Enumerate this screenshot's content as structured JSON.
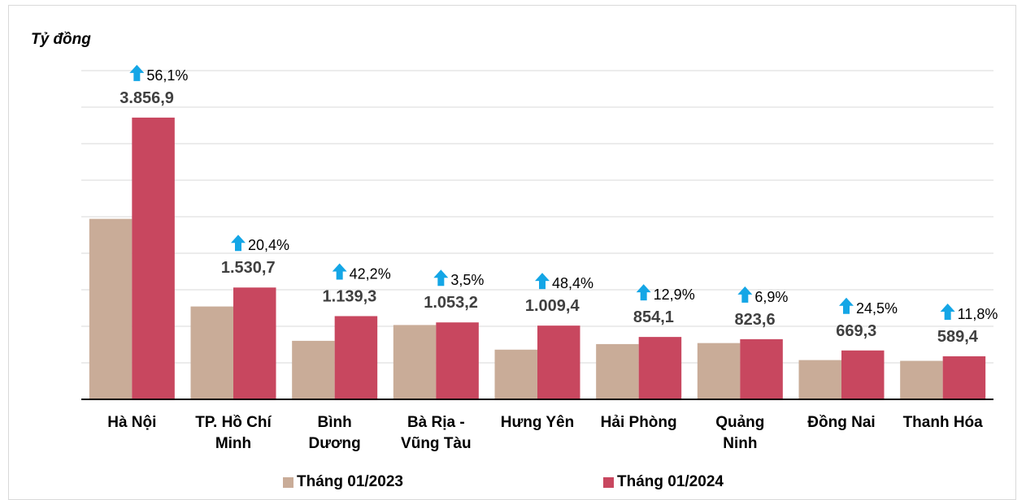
{
  "chart_data": {
    "type": "bar",
    "y_label": "Tỷ đồng",
    "categories": [
      "Hà Nội",
      "TP. Hồ Chí\nMinh",
      "Bình\nDương",
      "Bà Rịa -\nVũng Tàu",
      "Hưng Yên",
      "Hải Phòng",
      "Quảng\nNinh",
      "Đồng Nai",
      "Thanh Hóa"
    ],
    "series": [
      {
        "name": "Tháng 01/2023",
        "color": "#c9ac98",
        "values": [
          2470.8,
          1271.3,
          801.2,
          1017.6,
          680.2,
          756.5,
          770.4,
          537.6,
          527.2
        ]
      },
      {
        "name": "Tháng 01/2024",
        "color": "#c8475f",
        "values": [
          3856.9,
          1530.7,
          1139.3,
          1053.2,
          1009.4,
          854.1,
          823.6,
          669.3,
          589.4
        ],
        "value_labels": [
          "3.856,9",
          "1.530,7",
          "1.139,3",
          "1.053,2",
          "1.009,4",
          "854,1",
          "823,6",
          "669,3",
          "589,4"
        ]
      }
    ],
    "growth": {
      "values": [
        56.1,
        20.4,
        42.2,
        3.5,
        48.4,
        12.9,
        6.9,
        24.5,
        11.8
      ],
      "value_labels": [
        "56,1%",
        "20,4%",
        "42,2%",
        "3,5%",
        "48,4%",
        "12,9%",
        "6,9%",
        "24,5%",
        "11,8%"
      ]
    },
    "ylim": [
      0,
      4500
    ],
    "yticks": [
      0,
      500,
      1000,
      1500,
      2000,
      2500,
      3000,
      3500,
      4000,
      4500
    ],
    "grid": true
  }
}
